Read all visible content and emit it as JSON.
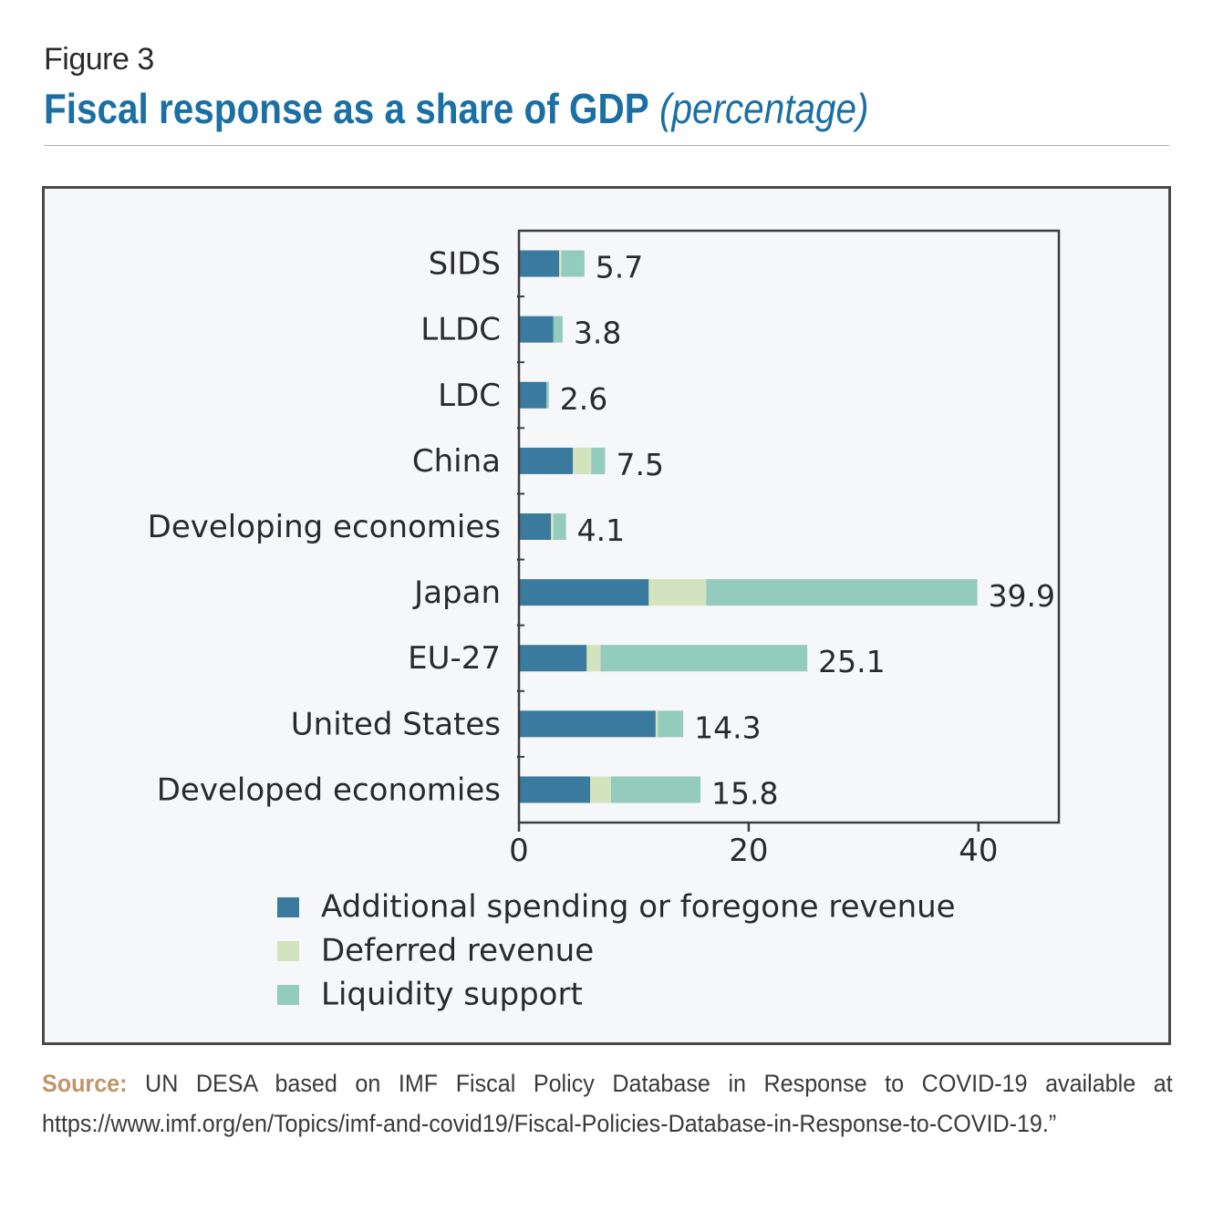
{
  "figure": {
    "label": "Figure 3",
    "title": "Fiscal response as a share of GDP",
    "title_unit": "(percentage)"
  },
  "chart_data": {
    "type": "bar",
    "orientation": "horizontal",
    "stacked": true,
    "categories": [
      "SIDS",
      "LLDC",
      "LDC",
      "China",
      "Developing economies",
      "Japan",
      "EU-27",
      "United States",
      "Developed economies"
    ],
    "series": [
      {
        "name": "Additional spending or foregone revenue",
        "color": "#3a7a9e",
        "values": [
          3.5,
          3.0,
          2.4,
          4.7,
          2.8,
          11.3,
          5.9,
          11.9,
          6.2
        ]
      },
      {
        "name": "Deferred revenue",
        "color": "#d3e3bd",
        "values": [
          0.2,
          0.0,
          0.0,
          1.6,
          0.2,
          5.0,
          1.2,
          0.2,
          1.8
        ]
      },
      {
        "name": "Liquidity support",
        "color": "#93cbbd",
        "values": [
          2.0,
          0.8,
          0.2,
          1.2,
          1.1,
          23.6,
          18.0,
          2.2,
          7.8
        ]
      }
    ],
    "totals": [
      "5.7",
      "3.8",
      "2.6",
      "7.5",
      "4.1",
      "39.9",
      "25.1",
      "14.3",
      "15.8"
    ],
    "xlim": [
      0,
      47
    ],
    "xticks": [
      "0",
      "20",
      "40"
    ],
    "legend_position": "bottom",
    "grid": false
  },
  "source": {
    "label": "Source:",
    "text": " UN DESA based on IMF Fiscal Policy Database in Response to COVID-19 available at https://www.imf.org/en/Topics/imf-and-covid19/Fiscal-Policies-Database-in-Response-to-COVID-19.”"
  }
}
